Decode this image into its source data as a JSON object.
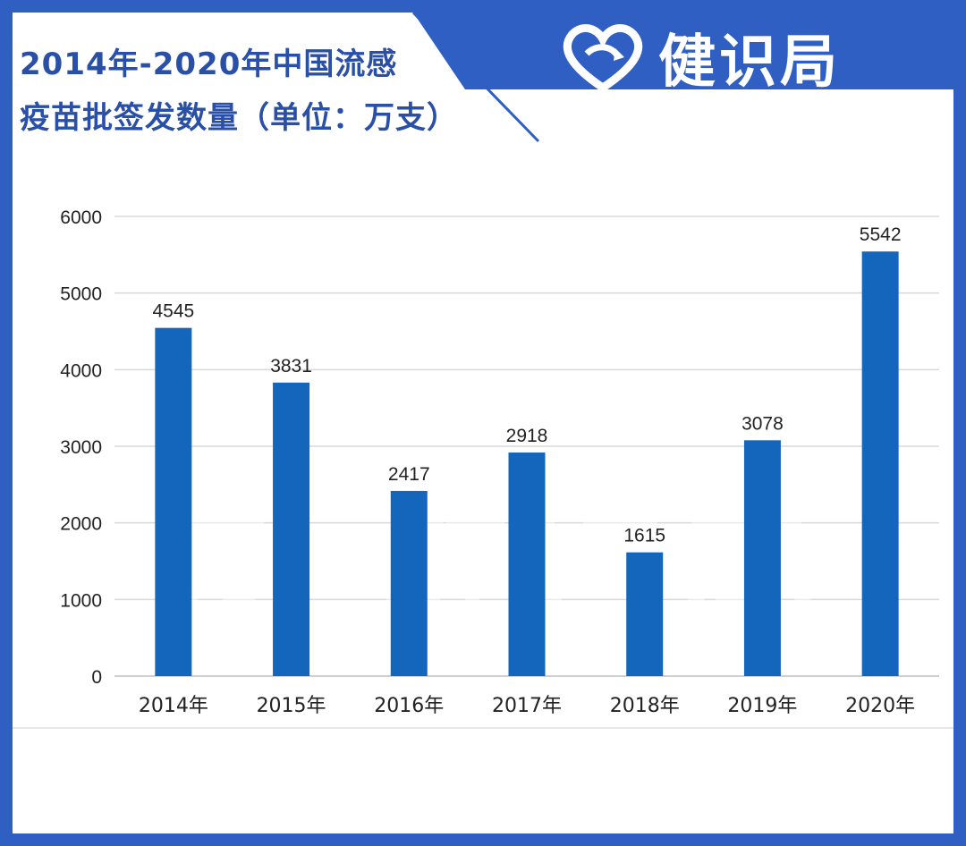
{
  "title": {
    "line1": "2014年-2020年中国流感",
    "line2": "疫苗批签发数量（单位：万支）"
  },
  "logo": {
    "text": "健识局",
    "icon": "heart-icon"
  },
  "watermark": {
    "text": "健识局"
  },
  "colors": {
    "frame": "#2f5fc3",
    "title": "#2a4fa6",
    "bar": "#1466bd",
    "grid": "#d9d9d9"
  },
  "chart_data": {
    "type": "bar",
    "title": "2014年-2020年中国流感疫苗批签发数量（单位：万支）",
    "categories": [
      "2014年",
      "2015年",
      "2016年",
      "2017年",
      "2018年",
      "2019年",
      "2020年"
    ],
    "values": [
      4545,
      3831,
      2417,
      2918,
      1615,
      3078,
      5542
    ],
    "ylim": [
      0,
      6000
    ],
    "yticks": [
      "0",
      "1000",
      "2000",
      "3000",
      "4000",
      "5000",
      "6000"
    ],
    "grid": true,
    "legend": "none"
  }
}
